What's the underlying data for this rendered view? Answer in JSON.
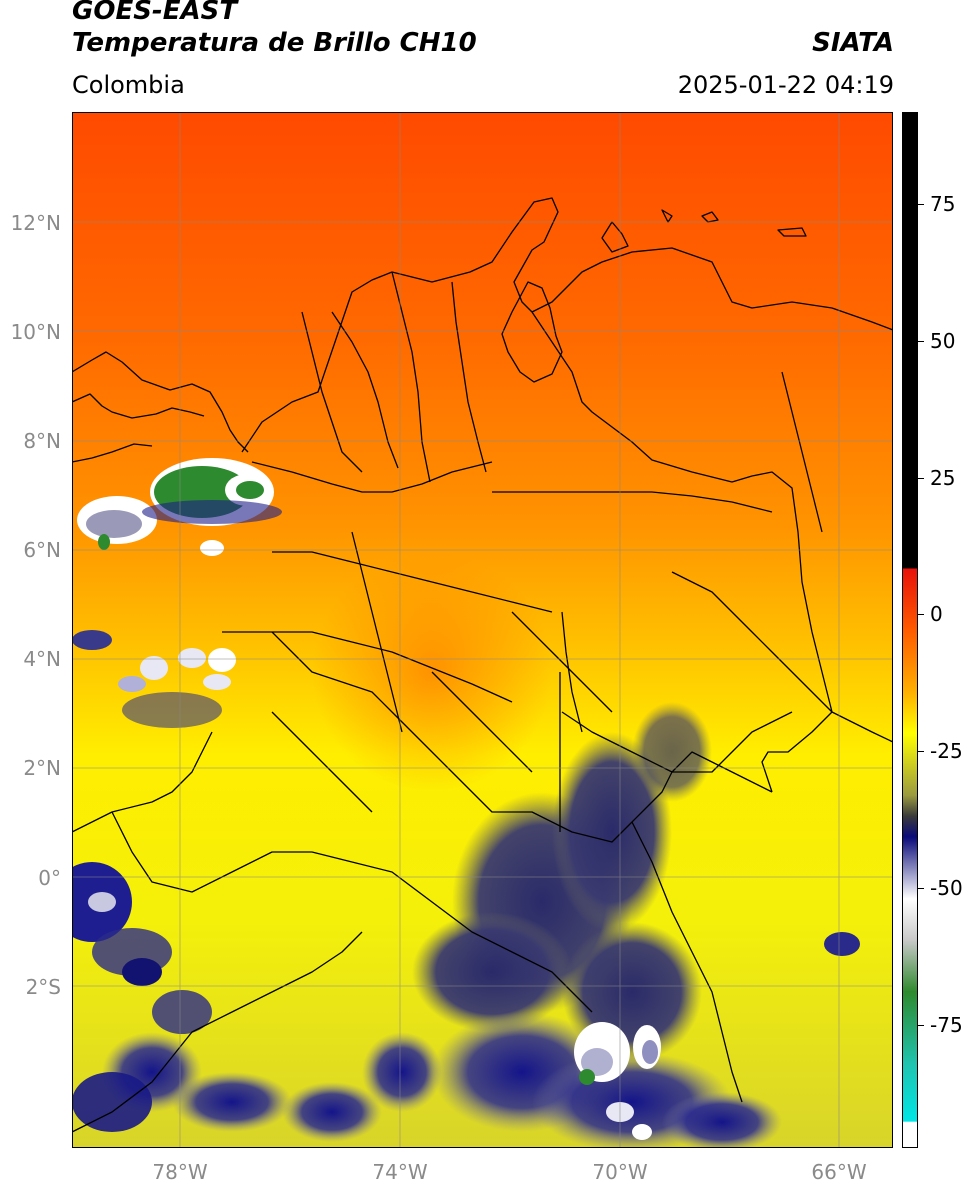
{
  "header": {
    "satellite": "GOES-EAST",
    "product": "Temperatura de Brillo CH10",
    "organization": "SIATA",
    "region": "Colombia",
    "datetime": "2025-01-22 04:19"
  },
  "map": {
    "lat_labels": [
      "12°N",
      "10°N",
      "8°N",
      "6°N",
      "4°N",
      "2°N",
      "0°",
      "2°S"
    ],
    "lon_labels": [
      "78°W",
      "74°W",
      "70°W",
      "66°W"
    ],
    "gridlines": true
  },
  "colorbar": {
    "ticks": [
      "75",
      "50",
      "25",
      "0",
      "-25",
      "-50",
      "-75"
    ],
    "colors": {
      "black": "#000000",
      "red": "#e8120a",
      "orange": "#ff6a00",
      "yellow": "#ffff00",
      "olive": "#b8b83c",
      "navy": "#18187a",
      "white": "#ffffff",
      "green": "#2e8a2e",
      "teal": "#1fc4b0",
      "cyan": "#00e6e6"
    }
  }
}
